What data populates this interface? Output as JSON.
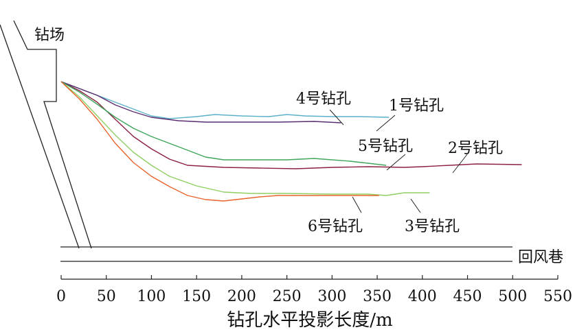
{
  "texts": {
    "drill_site": "钻场",
    "return_airway": "回风巷",
    "xlabel": "钻孔水平投影长度/m"
  },
  "chart_data": {
    "type": "line",
    "xlabel": "钻孔水平投影长度/m",
    "xlim": [
      0,
      550
    ],
    "xticks": [
      0,
      50,
      100,
      150,
      200,
      250,
      300,
      350,
      400,
      450,
      500,
      550
    ],
    "series": [
      {
        "name": "1号钻孔",
        "color": "#5ab0c8",
        "points": [
          [
            0,
            0
          ],
          [
            20,
            -10
          ],
          [
            50,
            -25
          ],
          [
            80,
            -40
          ],
          [
            100,
            -50
          ],
          [
            120,
            -54
          ],
          [
            150,
            -51
          ],
          [
            170,
            -48
          ],
          [
            200,
            -50
          ],
          [
            230,
            -51
          ],
          [
            250,
            -48
          ],
          [
            270,
            -50
          ],
          [
            300,
            -51
          ],
          [
            330,
            -51
          ],
          [
            363,
            -52
          ]
        ]
      },
      {
        "name": "2号钻孔",
        "color": "#8b2040",
        "points": [
          [
            0,
            0
          ],
          [
            20,
            -13
          ],
          [
            40,
            -30
          ],
          [
            60,
            -55
          ],
          [
            80,
            -80
          ],
          [
            100,
            -98
          ],
          [
            120,
            -113
          ],
          [
            140,
            -122
          ],
          [
            180,
            -125
          ],
          [
            220,
            -126
          ],
          [
            260,
            -127
          ],
          [
            300,
            -125
          ],
          [
            340,
            -124
          ],
          [
            380,
            -125
          ],
          [
            400,
            -124
          ],
          [
            430,
            -122
          ],
          [
            460,
            -120
          ],
          [
            510,
            -121
          ]
        ]
      },
      {
        "name": "3号钻孔",
        "color": "#8fcf62",
        "points": [
          [
            0,
            0
          ],
          [
            20,
            -22
          ],
          [
            40,
            -50
          ],
          [
            60,
            -78
          ],
          [
            80,
            -103
          ],
          [
            100,
            -122
          ],
          [
            120,
            -138
          ],
          [
            150,
            -152
          ],
          [
            180,
            -161
          ],
          [
            210,
            -163
          ],
          [
            250,
            -163
          ],
          [
            300,
            -164
          ],
          [
            340,
            -164
          ],
          [
            360,
            -166
          ],
          [
            380,
            -162
          ],
          [
            408,
            -162
          ]
        ]
      },
      {
        "name": "4号钻孔",
        "color": "#5a2c70",
        "points": [
          [
            0,
            0
          ],
          [
            20,
            -10
          ],
          [
            40,
            -20
          ],
          [
            60,
            -34
          ],
          [
            80,
            -44
          ],
          [
            100,
            -52
          ],
          [
            130,
            -57
          ],
          [
            160,
            -59
          ],
          [
            200,
            -59
          ],
          [
            240,
            -59
          ],
          [
            280,
            -58
          ],
          [
            310,
            -60
          ]
        ]
      },
      {
        "name": "5号钻孔",
        "color": "#3ea55a",
        "points": [
          [
            0,
            0
          ],
          [
            20,
            -15
          ],
          [
            40,
            -33
          ],
          [
            60,
            -52
          ],
          [
            80,
            -68
          ],
          [
            100,
            -80
          ],
          [
            120,
            -90
          ],
          [
            140,
            -100
          ],
          [
            160,
            -110
          ],
          [
            180,
            -114
          ],
          [
            220,
            -114
          ],
          [
            250,
            -114
          ],
          [
            280,
            -112
          ],
          [
            320,
            -116
          ],
          [
            360,
            -122
          ]
        ]
      },
      {
        "name": "6号钻孔",
        "color": "#e8622a",
        "points": [
          [
            0,
            0
          ],
          [
            20,
            -25
          ],
          [
            40,
            -55
          ],
          [
            60,
            -90
          ],
          [
            80,
            -118
          ],
          [
            100,
            -138
          ],
          [
            120,
            -153
          ],
          [
            140,
            -166
          ],
          [
            160,
            -172
          ],
          [
            180,
            -174
          ],
          [
            200,
            -171
          ],
          [
            220,
            -168
          ],
          [
            240,
            -166
          ],
          [
            280,
            -166
          ],
          [
            320,
            -166
          ],
          [
            352,
            -166
          ]
        ]
      }
    ]
  }
}
